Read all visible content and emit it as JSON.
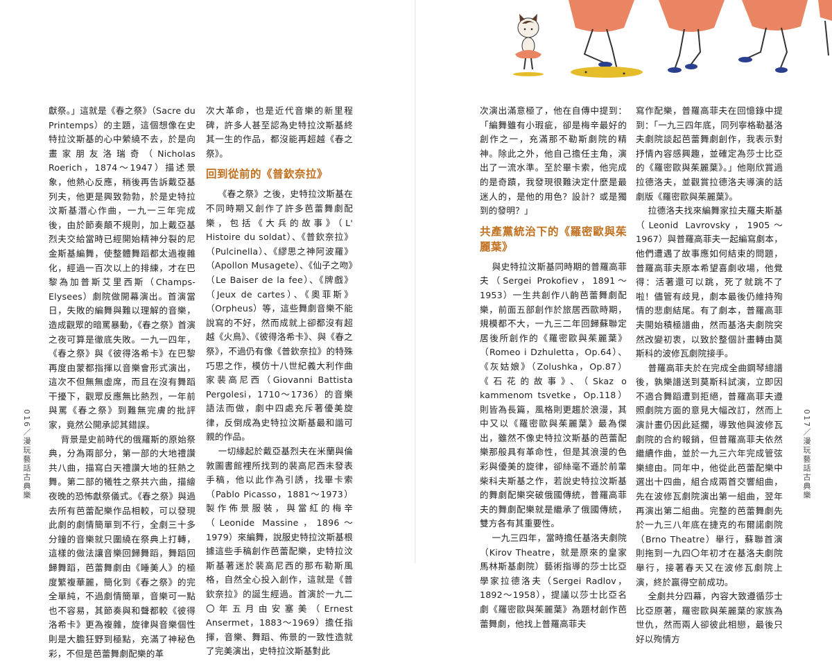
{
  "page_left": {
    "folio": "016／漫玩藝話古典樂",
    "col1": [
      "獻祭。」這就是《春之祭》（Sacre du Printemps）的主題，這個想像在史特拉汶斯基的心中縈繞不去，於是向畫家朋友洛瑞奇（Nicholas Roerich，1874～1947）描述景象，他熱心反應，稍後再告訴戴亞基列夫，他更是興致勃勃，於是史特拉汶斯基潛心作曲，一九一三年完成後，由於節奏顛不規則，加上戴亞基烈夫交給當時已經開始精神分裂的尼金斯基編舞，使整體舞蹈都太過複雜化，經過一百次以上的排練，才在巴黎為加普斯艾里西斯（Champs-Elysees）劇院做開幕演出。首演當日，失敗的編舞與難以理解的音樂，造成觀眾的暗罵暴動，《春之祭》首演之夜可算是徹底失敗。一九一四年，《春之祭》與《彼得洛希卡》在巴黎再度由蒙都指揮以音樂會形式演出，這次不但無無虛席，而且在沒有舞蹈干擾下，觀眾反應無比熱烈，一年前與罵《春之祭》到難無完膚的批評家，竟然公開承認其錯誤。",
      "背景是史前時代的俄羅斯的原始祭典，分為兩部分，第一部的大地禮讚共八曲，描寫白天禮讚大地的狂熱之舞。第二部的犧牲之祭共六曲，描繪夜晚的恐怖獻祭儀式。《春之祭》與過去所有芭蕾配樂作品相較，可以發現此劇的劇情簡單到不行，全劇三十多分鐘的音樂就只圍繞在祭典上打轉，這樣的做法讓音樂回歸舞蹈，舞蹈回歸舞蹈，芭蕾舞劇由《睡美人》的極度繁複華麗，簡化到《春之祭》的完全單純，不過劇情簡單，音樂可一點也不容易，其節奏與和聲都較《彼得洛希卡》更為複雜，旋律與音樂個性則是大膽狂野到極點，充滿了神秘色彩，不但是芭蕾舞劇配樂的革"
    ],
    "col2_intro": "次大革命，也是近代音樂的新里程碑，許多人甚至認為史特拉汶斯基終其一生的作品，都沒能再超越《春之祭》。",
    "col2_heading": "回到從前的《普欽奈拉》",
    "col2": [
      "《春之祭》之後，史特拉汶斯基在不同時期又創作了許多芭蕾舞劇配樂，包括《大兵的故事》（L' Histoire du soldat）、《普欽奈拉》（Pulcinella）、《繆思之神阿波羅》（Apollon Musagete）、《仙子之吻》（Le Baiser de la fee）、《牌戲》（Jeux de cartes）、《奧菲斯》（Orpheus）等，這些舞劇音樂不能說寫的不好，然而成就上卻都沒有超越《火鳥》、《彼得洛希卡》、與《春之祭》，不過仍有像《普欽奈拉》的特殊巧思之作，模仿十八世紀義大利作曲家裴高尼西（Giovanni Battista Pergolesi，1710～1736）的音樂語法而做，劇中四處充斥著優美旋律，反倒成為史特拉汶斯基最和諧可親的作品。",
      "一切緣起於戴亞基烈夫在米蘭與倫敦圖書館裡所找到的裴高尼西未發表手稿，他以此作為引誘，找畢卡索（Pablo Picasso，1881～1973）製作佈景服裝，與當紅的梅辛（Leonide Massine，1896～1979）來編舞，說服史特拉汶斯基根據這些手稿創作芭蕾配樂，史特拉汶斯基著迷於裴高尼西的那布勒斯風格，自然全心投入創作，這就是《普欽奈拉》的誕生經過。首演於一九二〇年五月由安塞美（Ernest Ansermet，1883～1969）擔任指揮，音樂、舞蹈、佈景的一致性造就了完美演出，史特拉汶斯基對此"
    ]
  },
  "page_right": {
    "folio": "017／漫玩藝話古典樂",
    "col3_intro": "次演出滿意極了，他在自傳中提到：「編舞雖有小瑕疵，卻是梅辛最好的創作之一，充滿那不勒斯劇院的精神。除此之外，他自己擔任主角，演出了一流水準。至於畢卡索，他完成的是奇蹟，我發現很難決定什麼是最迷人的，是他的用色？設計？或是獨到的發明？」",
    "col3_heading": "共產黨統治下的《羅密歐與茱麗葉》",
    "col3": [
      "與史特拉汶斯基同時期的普羅高菲夫（Sergei Prokofiev，1891～1953）一生共創作八齣芭蕾舞劇配樂，前面五部創作於旅居西歐時期，規模都不大，一九三二年回歸蘇聯定居後所創作的《羅密歐與茱麗葉》（Romeo i Dzhuletta，Op.64）、《灰姑娘》（Zolushka，Op.87）《石花的故事》、（Skaz o kammenom tsvetke，Op.118）則皆為長篇，風格則更趨於浪漫，其中又以《羅密歐與茱麗葉》最為傑出，雖然不像史特拉汶斯基的芭蕾配樂那般具有革命性，但是其浪漫的色彩與優美的旋律，卻絲毫不遜於前輩柴科夫斯基之作，若說史特拉汶斯基的舞劇配樂突破俄國傳統，普羅高菲夫的舞劇配樂就是繼承了俄國傳統，雙方各有其重要性。",
      "一九三四年，當時擔任基洛夫劇院（Kirov Theatre，就是原來的皇家馬林斯基劇院）藝術指導的莎士比亞學家拉德洛夫（Sergei Radlov，1892～1958），提議以莎士比亞名劇《羅密歐與茱麗葉》為題材創作芭蕾舞劇，他找上普羅高菲夫"
    ],
    "col4": [
      "寫作配樂，普羅高菲夫在回憶錄中提到：「一九三四年底，同列寧格勒基洛夫劇院談起芭蕾舞劇創作，我表示對抒情內容感興趣，並確定為莎士比亞的《羅密歐與茱麗葉》。」他剛欣賞過拉德洛夫，並觀賞拉德洛夫導演的話劇版《羅密歐與茱麗葉》。",
      "拉德洛夫找來編舞家拉夫羅夫斯基（Leonid Lavrovsky，1905～1967）與普羅高菲夫一起編寫劇本，他們遭遇了故事應如何結束的問題，普羅高菲夫原本希望喜劇收場，他覺得：活著還可以跳，死了就跳不了啦！儘管有歧見，劇本最後仍維持殉情的悲劇結尾。有了劇本，普羅高菲夫開始積極譜曲，然而基洛夫劇院突然改變初衷，以致於整個計畫轉由莫斯科的波修瓦劇院接手。",
      "普羅高菲夫於在完成全曲鋼琴總譜後，孰樂譜送到莫斯科試演，立即因不適合舞蹈遭到拒絕，普羅高菲夫遵照劇院方面的意見大幅改訂，然而上演計畫仍因此延擱，導致他與波修瓦劇院的合約報銷，但普羅高菲夫依然繼續作曲，並於一九三六年完成管弦樂總由。同年中，他從此芭蕾配樂中選出十四曲，組合成兩首交響組曲，先在波修瓦劇院演出第一組曲，翌年再演出第二組曲。完整的芭蕾舞劇先於一九三八年底在捷克的布爾諾劇院（Brno Theatre）舉行，蘇聯首演則拖到一九四〇年初才在基洛夫劇院舉行，接著春天又在波修瓦劇院上演，終於贏得空前成功。",
      "全劇共分四幕，內容大致遵循莎士比亞原著，羅密歐與茱麗葉的家族為世仇，然而兩人卻彼此相戀，最後只好以殉情方"
    ]
  },
  "illustration": {
    "description_icons": [
      "cat-figure-icon",
      "dancer-legs-icon"
    ],
    "colors": {
      "skirt": "#e98563",
      "shoe": "#2b3f8f",
      "floor": "#e5bd2b",
      "accent": "#c1701f"
    }
  }
}
